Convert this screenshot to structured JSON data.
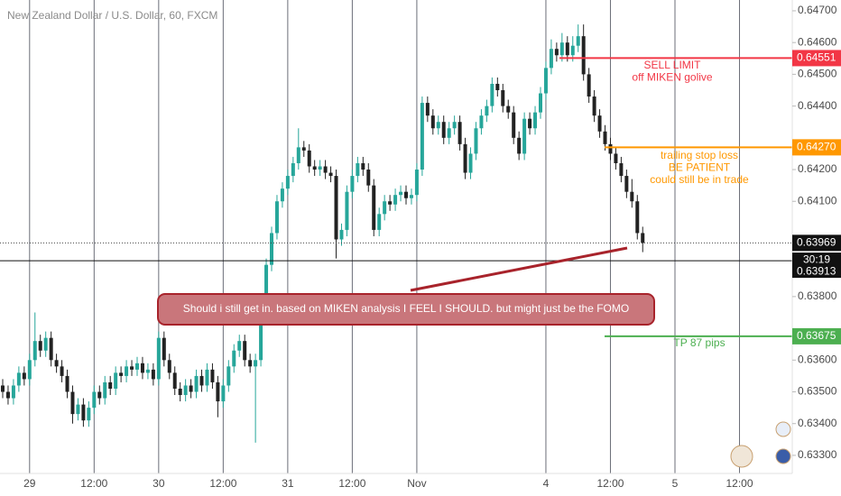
{
  "chart_data": {
    "type": "candlestick",
    "title": "New Zealand Dollar / U.S. Dollar, 60, FXCM",
    "up_color": "#26a69a",
    "down_color": "#222222",
    "ylim": [
      0.63243,
      0.64734
    ],
    "yticks": [
      {
        "value": 0.647,
        "label": "0.64700"
      },
      {
        "value": 0.646,
        "label": "0.64600"
      },
      {
        "value": 0.645,
        "label": "0.64500"
      },
      {
        "value": 0.644,
        "label": "0.64400"
      },
      {
        "value": 0.642,
        "label": "0.64200"
      },
      {
        "value": 0.641,
        "label": "0.64100"
      },
      {
        "value": 0.638,
        "label": "0.63800"
      },
      {
        "value": 0.636,
        "label": "0.63600"
      },
      {
        "value": 0.635,
        "label": "0.63500"
      },
      {
        "value": 0.634,
        "label": "0.63400"
      },
      {
        "value": 0.633,
        "label": "0.63300"
      }
    ],
    "categories": [
      null,
      null,
      null,
      null,
      null,
      "29",
      null,
      null,
      null,
      null,
      null,
      null,
      null,
      null,
      null,
      null,
      null,
      "12:00",
      null,
      null,
      null,
      null,
      null,
      null,
      null,
      null,
      null,
      null,
      null,
      "30",
      null,
      null,
      null,
      null,
      null,
      null,
      null,
      null,
      null,
      null,
      null,
      "12:00",
      null,
      null,
      null,
      null,
      null,
      null,
      null,
      null,
      null,
      null,
      null,
      "31",
      null,
      null,
      null,
      null,
      null,
      null,
      null,
      null,
      null,
      null,
      null,
      "12:00",
      null,
      null,
      null,
      null,
      null,
      null,
      null,
      null,
      null,
      null,
      null,
      "Nov",
      null,
      null,
      null,
      null,
      null,
      null,
      null,
      null,
      null,
      null,
      null,
      null,
      null,
      null,
      null,
      null,
      null,
      null,
      null,
      null,
      null,
      null,
      null,
      "4",
      null,
      null,
      null,
      null,
      null,
      null,
      null,
      null,
      null,
      null,
      null,
      "12:00",
      null,
      null,
      null,
      null,
      null,
      null,
      null,
      null,
      null,
      null,
      null,
      "5",
      null,
      null,
      null,
      null,
      null,
      null,
      null,
      null,
      null,
      null,
      null,
      "12:00",
      null,
      null,
      null,
      null,
      null,
      null,
      null,
      null
    ],
    "ohlc": [
      [
        0.6352,
        0.6354,
        0.6348,
        0.635
      ],
      [
        0.635,
        0.6352,
        0.6346,
        0.6348
      ],
      [
        0.6348,
        0.6354,
        0.6346,
        0.6352
      ],
      [
        0.6352,
        0.6358,
        0.635,
        0.6356
      ],
      [
        0.6356,
        0.6358,
        0.6352,
        0.6354
      ],
      [
        0.6354,
        0.6362,
        0.6352,
        0.636
      ],
      [
        0.636,
        0.6375,
        0.6358,
        0.6366
      ],
      [
        0.6366,
        0.6368,
        0.6361,
        0.6363
      ],
      [
        0.6363,
        0.6369,
        0.6361,
        0.6367
      ],
      [
        0.6367,
        0.6369,
        0.6358,
        0.636
      ],
      [
        0.636,
        0.6362,
        0.6356,
        0.6358
      ],
      [
        0.6358,
        0.636,
        0.6353,
        0.6355
      ],
      [
        0.6355,
        0.6357,
        0.6348,
        0.635
      ],
      [
        0.635,
        0.6352,
        0.634,
        0.6343
      ],
      [
        0.6343,
        0.6348,
        0.6341,
        0.6346
      ],
      [
        0.6346,
        0.6348,
        0.6339,
        0.6341
      ],
      [
        0.6341,
        0.6347,
        0.6339,
        0.6345
      ],
      [
        0.6345,
        0.6352,
        0.6343,
        0.635
      ],
      [
        0.635,
        0.6352,
        0.6346,
        0.6348
      ],
      [
        0.6348,
        0.6355,
        0.6346,
        0.6353
      ],
      [
        0.6353,
        0.6355,
        0.6349,
        0.6351
      ],
      [
        0.6351,
        0.6358,
        0.6349,
        0.6356
      ],
      [
        0.6356,
        0.6358,
        0.6353,
        0.6355
      ],
      [
        0.6355,
        0.636,
        0.6353,
        0.6358
      ],
      [
        0.6358,
        0.636,
        0.6355,
        0.6357
      ],
      [
        0.6357,
        0.6361,
        0.6355,
        0.6359
      ],
      [
        0.6359,
        0.6361,
        0.6354,
        0.6356
      ],
      [
        0.6356,
        0.6359,
        0.6354,
        0.6357
      ],
      [
        0.6357,
        0.6359,
        0.6352,
        0.6354
      ],
      [
        0.6354,
        0.6369,
        0.6352,
        0.6367
      ],
      [
        0.6367,
        0.6369,
        0.6358,
        0.636
      ],
      [
        0.636,
        0.6362,
        0.6354,
        0.6356
      ],
      [
        0.6356,
        0.6358,
        0.6349,
        0.6351
      ],
      [
        0.6351,
        0.6353,
        0.6347,
        0.6349
      ],
      [
        0.6349,
        0.6354,
        0.6347,
        0.6352
      ],
      [
        0.6352,
        0.6354,
        0.6348,
        0.635
      ],
      [
        0.635,
        0.6357,
        0.6348,
        0.6355
      ],
      [
        0.6355,
        0.6357,
        0.635,
        0.6352
      ],
      [
        0.6352,
        0.6359,
        0.635,
        0.6357
      ],
      [
        0.6357,
        0.6359,
        0.6351,
        0.6353
      ],
      [
        0.6353,
        0.6355,
        0.6342,
        0.6347
      ],
      [
        0.6347,
        0.6354,
        0.6345,
        0.6352
      ],
      [
        0.6352,
        0.636,
        0.635,
        0.6358
      ],
      [
        0.6358,
        0.6365,
        0.6356,
        0.6363
      ],
      [
        0.6363,
        0.6368,
        0.6361,
        0.6366
      ],
      [
        0.6366,
        0.6368,
        0.6358,
        0.636
      ],
      [
        0.636,
        0.6362,
        0.6356,
        0.6358
      ],
      [
        0.6358,
        0.6362,
        0.6334,
        0.636
      ],
      [
        0.636,
        0.6377,
        0.6358,
        0.6375
      ],
      [
        0.6375,
        0.6392,
        0.6373,
        0.639
      ],
      [
        0.639,
        0.6402,
        0.6388,
        0.64
      ],
      [
        0.64,
        0.6412,
        0.6398,
        0.641
      ],
      [
        0.641,
        0.6416,
        0.6408,
        0.6414
      ],
      [
        0.6414,
        0.642,
        0.6412,
        0.6418
      ],
      [
        0.6418,
        0.6424,
        0.6416,
        0.6422
      ],
      [
        0.6422,
        0.6433,
        0.642,
        0.6427
      ],
      [
        0.6427,
        0.6429,
        0.6424,
        0.6426
      ],
      [
        0.6426,
        0.6428,
        0.6419,
        0.6421
      ],
      [
        0.6421,
        0.6423,
        0.6418,
        0.642
      ],
      [
        0.642,
        0.6423,
        0.6418,
        0.6421
      ],
      [
        0.6421,
        0.6423,
        0.6417,
        0.6419
      ],
      [
        0.6419,
        0.6421,
        0.6416,
        0.6418
      ],
      [
        0.6418,
        0.642,
        0.6392,
        0.6398
      ],
      [
        0.6398,
        0.6403,
        0.6396,
        0.6401
      ],
      [
        0.6401,
        0.6415,
        0.6399,
        0.6413
      ],
      [
        0.6413,
        0.642,
        0.6411,
        0.6418
      ],
      [
        0.6418,
        0.6424,
        0.6416,
        0.6422
      ],
      [
        0.6422,
        0.6424,
        0.6418,
        0.642
      ],
      [
        0.642,
        0.6422,
        0.6413,
        0.6415
      ],
      [
        0.6415,
        0.6417,
        0.6399,
        0.6401
      ],
      [
        0.6401,
        0.6408,
        0.6399,
        0.6406
      ],
      [
        0.6406,
        0.6412,
        0.6404,
        0.641
      ],
      [
        0.641,
        0.6412,
        0.6407,
        0.6409
      ],
      [
        0.6409,
        0.6414,
        0.6407,
        0.6412
      ],
      [
        0.6412,
        0.6415,
        0.641,
        0.6413
      ],
      [
        0.6413,
        0.6415,
        0.6409,
        0.6411
      ],
      [
        0.6411,
        0.6414,
        0.6409,
        0.6412
      ],
      [
        0.6412,
        0.6422,
        0.641,
        0.642
      ],
      [
        0.642,
        0.6443,
        0.6418,
        0.6441
      ],
      [
        0.6441,
        0.6443,
        0.6435,
        0.6437
      ],
      [
        0.6437,
        0.6439,
        0.6431,
        0.6433
      ],
      [
        0.6433,
        0.6437,
        0.6431,
        0.6435
      ],
      [
        0.6435,
        0.6437,
        0.6428,
        0.643
      ],
      [
        0.643,
        0.6435,
        0.6428,
        0.6433
      ],
      [
        0.6433,
        0.6437,
        0.6431,
        0.6435
      ],
      [
        0.6435,
        0.6437,
        0.6426,
        0.6428
      ],
      [
        0.6428,
        0.643,
        0.6417,
        0.6419
      ],
      [
        0.6419,
        0.6427,
        0.6417,
        0.6425
      ],
      [
        0.6425,
        0.6435,
        0.6423,
        0.6433
      ],
      [
        0.6433,
        0.6439,
        0.6431,
        0.6437
      ],
      [
        0.6437,
        0.6442,
        0.6435,
        0.644
      ],
      [
        0.644,
        0.6449,
        0.6438,
        0.6447
      ],
      [
        0.6447,
        0.6449,
        0.6443,
        0.6445
      ],
      [
        0.6445,
        0.6447,
        0.6438,
        0.644
      ],
      [
        0.644,
        0.6442,
        0.6436,
        0.6438
      ],
      [
        0.6438,
        0.644,
        0.6428,
        0.643
      ],
      [
        0.643,
        0.6432,
        0.6423,
        0.6425
      ],
      [
        0.6425,
        0.6438,
        0.6423,
        0.6436
      ],
      [
        0.6436,
        0.6438,
        0.6431,
        0.6433
      ],
      [
        0.6433,
        0.644,
        0.6431,
        0.6438
      ],
      [
        0.6438,
        0.6446,
        0.6436,
        0.6444
      ],
      [
        0.6444,
        0.6454,
        0.6442,
        0.6452
      ],
      [
        0.6452,
        0.6461,
        0.645,
        0.6458
      ],
      [
        0.6458,
        0.646,
        0.6454,
        0.6456
      ],
      [
        0.6456,
        0.6463,
        0.6454,
        0.646
      ],
      [
        0.646,
        0.6462,
        0.6454,
        0.6456
      ],
      [
        0.6456,
        0.6462,
        0.6454,
        0.6459
      ],
      [
        0.6459,
        0.64657,
        0.6457,
        0.6462
      ],
      [
        0.6462,
        0.64657,
        0.6448,
        0.645
      ],
      [
        0.645,
        0.6452,
        0.6441,
        0.6443
      ],
      [
        0.6443,
        0.6445,
        0.6435,
        0.6437
      ],
      [
        0.6437,
        0.6439,
        0.643,
        0.6432
      ],
      [
        0.6432,
        0.6434,
        0.6426,
        0.6428
      ],
      [
        0.6428,
        0.643,
        0.6423,
        0.6425
      ],
      [
        0.6425,
        0.6427,
        0.642,
        0.6422
      ],
      [
        0.6422,
        0.6424,
        0.6416,
        0.6418
      ],
      [
        0.6418,
        0.642,
        0.6411,
        0.6413
      ],
      [
        0.6413,
        0.6417,
        0.6408,
        0.641
      ],
      [
        0.641,
        0.6412,
        0.6398,
        0.64
      ],
      [
        0.64,
        0.6402,
        0.6394,
        0.63969
      ],
      null,
      null,
      null,
      null,
      null,
      null,
      null,
      null,
      null,
      null,
      null,
      null,
      null,
      null,
      null,
      null,
      null,
      null,
      null,
      null,
      null,
      null,
      null,
      null,
      null,
      null
    ],
    "levels": [
      {
        "value": 0.64551,
        "color": "#f23645",
        "notes": [
          "SELL LIMIT",
          "off MIKEN golive"
        ]
      },
      {
        "value": 0.6427,
        "label": "0.64270",
        "color": "#ff9800",
        "notes": [
          "trailing stop loss",
          "BE PATIENT",
          "could still be in trade"
        ]
      },
      {
        "value": 0.63675,
        "color": "#4caf50",
        "notes": [
          "TP 87 pips"
        ]
      }
    ],
    "last_price": 0.63969,
    "crosshair_price": 0.63913,
    "countdown": "30:19",
    "annotation": "Should i still get in. based on MIKEN analysis I FEEL I SHOULD. but might just be the FOMO"
  }
}
